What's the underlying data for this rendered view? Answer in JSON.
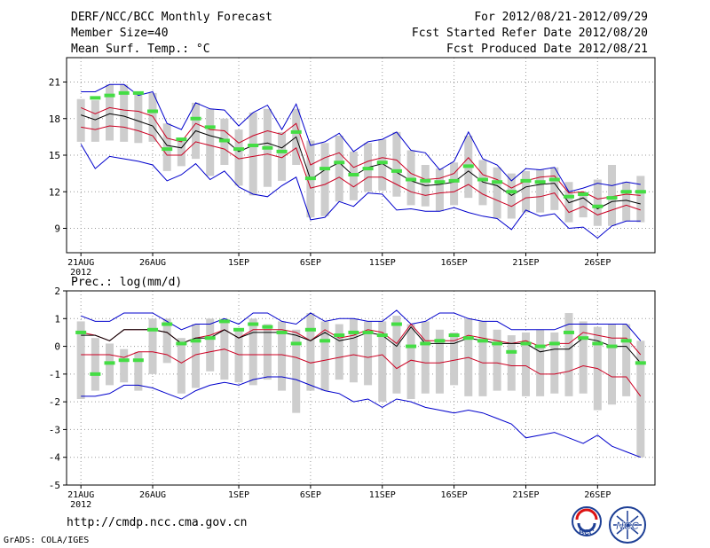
{
  "header": {
    "title": "DERF/NCC/BCC Monthly Forecast",
    "member_size": "Member Size=40",
    "variable": "Mean Surf. Temp.: °C",
    "period": "For 2012/08/21-2012/09/29",
    "started": "Fcst Started Refer Date 2012/08/20",
    "produced": "Fcst Produced Date 2012/08/21"
  },
  "footer": {
    "url": "http://cmdp.ncc.cma.gov.cn",
    "credit": "GrADS: COLA/IGES",
    "logo_bcc": "BCC",
    "logo_ncc": "NCC"
  },
  "colors": {
    "median": "#000000",
    "quartile": "#cc0022",
    "extreme": "#0000cc",
    "box": "#cdcdcd",
    "obs": "#44dd44",
    "grid": "#999999"
  },
  "chart_data": [
    {
      "type": "line",
      "title": "Mean Surf. Temp.: °C",
      "x_tick_labels": [
        "21AUG",
        "26AUG",
        "1SEP",
        "6SEP",
        "11SEP",
        "16SEP",
        "21SEP",
        "26SEP"
      ],
      "x_tick_year": "2012",
      "x_tick_days": [
        1,
        6,
        12,
        17,
        22,
        27,
        32,
        37
      ],
      "y_tick_labels": [
        "9",
        "12",
        "15",
        "18",
        "21"
      ],
      "y_tick_values": [
        9,
        12,
        15,
        18,
        21
      ],
      "ylim": [
        7,
        23
      ],
      "xlim": [
        0,
        41
      ],
      "series": [
        {
          "name": "max",
          "values": [
            20.2,
            20.2,
            20.8,
            20.8,
            19.9,
            20.2,
            17.6,
            17.1,
            19.3,
            18.8,
            18.7,
            17.4,
            18.5,
            19.1,
            17.1,
            19.2,
            15.8,
            16.1,
            16.8,
            15.3,
            16.1,
            16.3,
            16.9,
            15.4,
            15.2,
            13.8,
            14.5,
            16.9,
            14.7,
            14.2,
            12.9,
            13.9,
            13.8,
            14.0,
            12.0,
            12.3,
            12.7,
            12.5,
            12.8,
            12.6
          ]
        },
        {
          "name": "upper_quartile",
          "values": [
            18.9,
            18.4,
            18.9,
            18.7,
            18.6,
            18.2,
            16.4,
            16.1,
            17.6,
            17.1,
            17.0,
            16.0,
            16.6,
            17.0,
            16.7,
            17.6,
            14.2,
            14.8,
            15.2,
            14.0,
            14.5,
            14.8,
            14.6,
            13.5,
            13.0,
            13.1,
            13.5,
            14.8,
            13.4,
            13.0,
            12.3,
            12.9,
            13.2,
            13.3,
            11.9,
            12.0,
            11.4,
            11.6,
            11.8,
            11.7
          ]
        },
        {
          "name": "median",
          "values": [
            18.3,
            17.9,
            18.4,
            18.2,
            17.8,
            17.4,
            15.8,
            15.6,
            17.0,
            16.6,
            16.3,
            15.3,
            15.8,
            16.0,
            15.6,
            16.5,
            13.0,
            13.8,
            14.4,
            13.3,
            14.0,
            14.3,
            13.6,
            12.9,
            12.5,
            12.6,
            12.8,
            13.7,
            12.8,
            12.5,
            11.7,
            12.4,
            12.6,
            12.7,
            11.1,
            11.5,
            10.6,
            11.2,
            11.3,
            11.0
          ]
        },
        {
          "name": "lower_quartile",
          "values": [
            17.3,
            17.1,
            17.4,
            17.3,
            17.0,
            16.6,
            15.0,
            15.0,
            16.1,
            15.8,
            15.5,
            14.7,
            14.9,
            15.1,
            14.8,
            15.6,
            12.3,
            12.6,
            13.2,
            12.4,
            13.2,
            13.2,
            12.6,
            12.0,
            11.7,
            11.9,
            12.0,
            12.6,
            11.8,
            11.3,
            10.8,
            11.5,
            11.6,
            11.9,
            10.3,
            10.8,
            10.1,
            10.5,
            10.9,
            10.5
          ]
        },
        {
          "name": "min",
          "values": [
            15.9,
            13.9,
            14.9,
            14.7,
            14.5,
            14.2,
            12.9,
            13.4,
            14.3,
            13.0,
            13.7,
            12.4,
            11.8,
            11.6,
            12.5,
            13.2,
            9.7,
            9.9,
            11.2,
            10.8,
            11.9,
            11.8,
            10.5,
            10.6,
            10.4,
            10.4,
            10.7,
            10.3,
            10.0,
            9.8,
            8.9,
            10.5,
            10.0,
            10.2,
            9.0,
            9.1,
            8.2,
            9.2,
            9.6,
            9.6
          ]
        },
        {
          "name": "observed",
          "values": [
            null,
            19.7,
            19.9,
            20.1,
            20.1,
            18.6,
            15.5,
            16.3,
            18.0,
            17.3,
            16.2,
            15.5,
            15.8,
            15.6,
            15.3,
            16.9,
            13.1,
            13.9,
            14.4,
            13.4,
            13.9,
            14.4,
            13.7,
            13.0,
            12.9,
            12.8,
            12.9,
            14.1,
            13.0,
            12.8,
            12.0,
            12.9,
            12.8,
            13.0,
            11.6,
            11.8,
            10.8,
            11.5,
            12.0,
            12.0
          ]
        },
        {
          "name": "box_top",
          "values": [
            19.6,
            19.5,
            20.8,
            20.8,
            20.0,
            20.1,
            17.6,
            16.2,
            19.3,
            18.8,
            18.0,
            17.1,
            18.5,
            18.8,
            16.9,
            18.8,
            16.2,
            16.0,
            16.6,
            15.3,
            16.0,
            16.3,
            16.9,
            15.4,
            14.2,
            13.9,
            14.4,
            16.6,
            14.6,
            14.0,
            13.5,
            13.7,
            13.8,
            14.0,
            12.8,
            12.0,
            13.0,
            14.2,
            12.8,
            13.3
          ]
        },
        {
          "name": "box_bottom",
          "values": [
            16.1,
            16.1,
            16.2,
            16.1,
            16.0,
            16.1,
            13.7,
            14.1,
            14.7,
            13.3,
            14.2,
            12.5,
            11.7,
            12.4,
            12.9,
            14.2,
            9.9,
            10.0,
            11.2,
            11.3,
            12.0,
            12.1,
            11.6,
            10.9,
            10.8,
            10.4,
            10.9,
            11.5,
            10.9,
            9.8,
            9.8,
            10.3,
            10.3,
            10.5,
            9.5,
            9.9,
            9.2,
            9.2,
            9.6,
            9.5
          ]
        }
      ]
    },
    {
      "type": "line",
      "title": "Prec.: log(mm/d)",
      "x_tick_labels": [
        "21AUG",
        "26AUG",
        "1SEP",
        "6SEP",
        "11SEP",
        "16SEP",
        "21SEP",
        "26SEP"
      ],
      "x_tick_year": "2012",
      "x_tick_days": [
        1,
        6,
        12,
        17,
        22,
        27,
        32,
        37
      ],
      "y_tick_labels": [
        "-5",
        "-4",
        "-3",
        "-2",
        "-1",
        "0",
        "1",
        "2"
      ],
      "y_tick_values": [
        -5,
        -4,
        -3,
        -2,
        -1,
        0,
        1,
        2
      ],
      "ylim": [
        -5,
        2
      ],
      "xlim": [
        0,
        41
      ],
      "series": [
        {
          "name": "max",
          "values": [
            1.1,
            0.9,
            0.9,
            1.2,
            1.2,
            1.2,
            0.9,
            0.6,
            0.8,
            0.8,
            1.0,
            0.8,
            1.2,
            1.2,
            0.9,
            0.8,
            1.2,
            0.9,
            1.0,
            1.0,
            0.9,
            0.9,
            1.3,
            0.8,
            0.9,
            1.2,
            1.2,
            1.0,
            0.9,
            0.9,
            0.6,
            0.6,
            0.6,
            0.6,
            0.8,
            0.8,
            0.8,
            0.8,
            0.8,
            0.2
          ]
        },
        {
          "name": "upper_quartile",
          "values": [
            0.5,
            0.4,
            0.2,
            0.6,
            0.6,
            0.6,
            0.5,
            0.1,
            0.3,
            0.4,
            0.6,
            0.3,
            0.6,
            0.6,
            0.6,
            0.5,
            0.2,
            0.6,
            0.3,
            0.4,
            0.6,
            0.5,
            0.1,
            0.8,
            0.2,
            0.2,
            0.2,
            0.4,
            0.3,
            0.2,
            0.1,
            0.2,
            0.0,
            0.1,
            0.1,
            0.5,
            0.4,
            0.3,
            0.3,
            -0.3
          ]
        },
        {
          "name": "median",
          "values": [
            0.4,
            0.4,
            0.2,
            0.6,
            0.6,
            0.6,
            0.5,
            0.1,
            0.3,
            0.3,
            0.6,
            0.3,
            0.5,
            0.5,
            0.5,
            0.4,
            0.2,
            0.5,
            0.2,
            0.3,
            0.5,
            0.4,
            0.0,
            0.7,
            0.1,
            0.1,
            0.1,
            0.3,
            0.2,
            0.1,
            0.1,
            0.1,
            -0.2,
            -0.1,
            -0.1,
            0.3,
            0.2,
            0.0,
            0.0,
            -0.6
          ]
        },
        {
          "name": "lower_quartile",
          "values": [
            -0.3,
            -0.3,
            -0.3,
            -0.4,
            -0.2,
            -0.2,
            -0.3,
            -0.6,
            -0.3,
            -0.2,
            -0.1,
            -0.3,
            -0.3,
            -0.3,
            -0.3,
            -0.4,
            -0.6,
            -0.5,
            -0.4,
            -0.3,
            -0.4,
            -0.3,
            -0.8,
            -0.5,
            -0.6,
            -0.6,
            -0.5,
            -0.4,
            -0.6,
            -0.6,
            -0.7,
            -0.7,
            -1.0,
            -1.0,
            -0.9,
            -0.7,
            -0.8,
            -1.1,
            -1.1,
            -1.8
          ]
        },
        {
          "name": "min",
          "values": [
            -1.8,
            -1.8,
            -1.7,
            -1.4,
            -1.4,
            -1.5,
            -1.7,
            -1.9,
            -1.6,
            -1.4,
            -1.3,
            -1.4,
            -1.2,
            -1.1,
            -1.1,
            -1.2,
            -1.4,
            -1.6,
            -1.7,
            -2.0,
            -1.9,
            -2.2,
            -1.9,
            -2.0,
            -2.2,
            -2.3,
            -2.4,
            -2.3,
            -2.4,
            -2.6,
            -2.8,
            -3.3,
            -3.2,
            -3.1,
            -3.3,
            -3.5,
            -3.2,
            -3.6,
            -3.8,
            -4.0
          ]
        },
        {
          "name": "observed",
          "values": [
            0.5,
            -1.0,
            -0.6,
            -0.5,
            -0.5,
            0.6,
            0.8,
            0.1,
            0.2,
            0.3,
            0.9,
            0.6,
            0.8,
            0.7,
            0.5,
            0.1,
            0.6,
            0.2,
            0.4,
            0.5,
            0.5,
            0.4,
            0.8,
            0.0,
            0.1,
            0.2,
            0.4,
            0.3,
            0.2,
            0.1,
            -0.2,
            0.1,
            0.0,
            0.1,
            0.5,
            0.3,
            0.1,
            0.0,
            0.2,
            -0.6
          ]
        },
        {
          "name": "box_top",
          "values": [
            0.9,
            0.3,
            0.1,
            -0.1,
            -0.2,
            1.0,
            1.0,
            0.3,
            0.8,
            1.0,
            1.0,
            0.6,
            1.0,
            0.8,
            0.9,
            0.6,
            1.2,
            0.9,
            0.8,
            1.0,
            0.9,
            0.9,
            1.1,
            0.8,
            0.9,
            0.6,
            0.5,
            1.0,
            0.9,
            0.6,
            0.4,
            0.5,
            0.6,
            0.5,
            1.2,
            0.9,
            0.7,
            0.8,
            0.8,
            0.2
          ]
        },
        {
          "name": "box_bottom",
          "values": [
            -1.9,
            -1.6,
            -1.4,
            -1.3,
            -1.6,
            -1.0,
            -0.6,
            -1.7,
            -1.5,
            -0.9,
            -1.2,
            -1.3,
            -1.4,
            -1.2,
            -1.6,
            -2.4,
            -1.6,
            -1.6,
            -1.2,
            -1.3,
            -1.4,
            -2.0,
            -1.7,
            -1.9,
            -1.7,
            -1.7,
            -1.4,
            -1.8,
            -1.8,
            -1.6,
            -1.6,
            -1.8,
            -1.8,
            -1.7,
            -1.8,
            -1.7,
            -2.3,
            -2.1,
            -1.8,
            -4.0
          ]
        }
      ]
    }
  ]
}
